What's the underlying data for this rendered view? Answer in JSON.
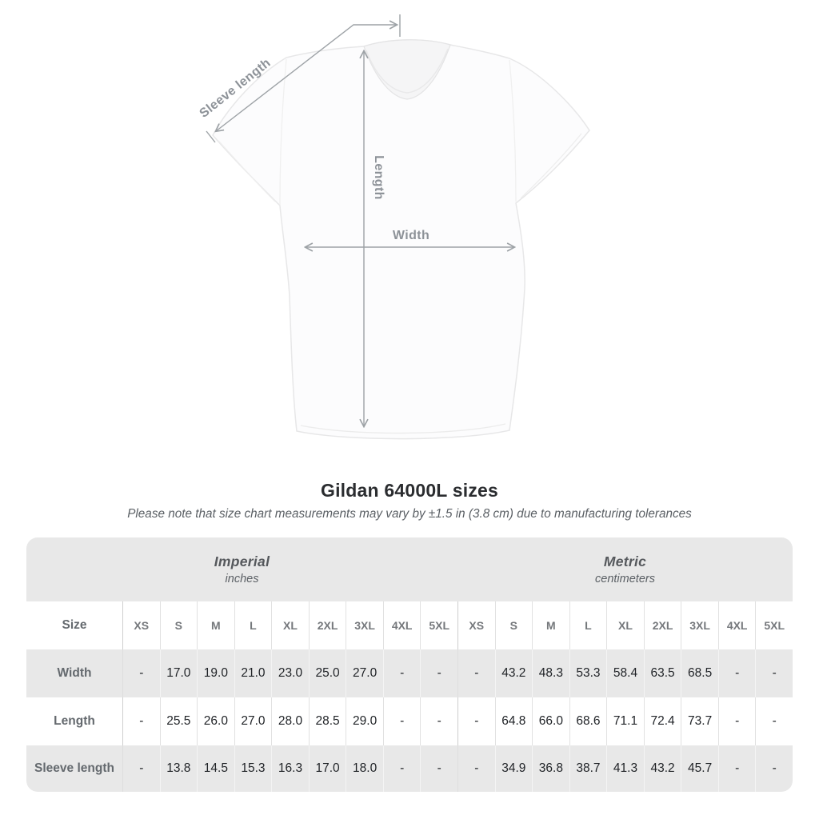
{
  "diagram": {
    "sleeve_length_label": "Sleeve length",
    "length_label": "Length",
    "width_label": "Width",
    "line_color": "#9da2a6",
    "label_color": "#8d9298"
  },
  "heading": {
    "title": "Gildan 64000L sizes",
    "note": "Please note that size chart measurements may vary by ±1.5 in (3.8 cm) due to manufacturing tolerances"
  },
  "chart_data": {
    "type": "table",
    "title": "Gildan 64000L sizes",
    "note": "Please note that size chart measurements may vary by ±1.5 in (3.8 cm) due to manufacturing tolerances",
    "section_headers": [
      {
        "name": "Imperial",
        "unit": "inches"
      },
      {
        "name": "Metric",
        "unit": "centimeters"
      }
    ],
    "corner_label": "Size",
    "size_columns": [
      "XS",
      "S",
      "M",
      "L",
      "XL",
      "2XL",
      "3XL",
      "4XL",
      "5XL"
    ],
    "rows": [
      {
        "label": "Width",
        "imperial": [
          "-",
          "17.0",
          "19.0",
          "21.0",
          "23.0",
          "25.0",
          "27.0",
          "-",
          "-"
        ],
        "metric": [
          "-",
          "43.2",
          "48.3",
          "53.3",
          "58.4",
          "63.5",
          "68.5",
          "-",
          "-"
        ]
      },
      {
        "label": "Length",
        "imperial": [
          "-",
          "25.5",
          "26.0",
          "27.0",
          "28.0",
          "28.5",
          "29.0",
          "-",
          "-"
        ],
        "metric": [
          "-",
          "64.8",
          "66.0",
          "68.6",
          "71.1",
          "72.4",
          "73.7",
          "-",
          "-"
        ]
      },
      {
        "label": "Sleeve length",
        "imperial": [
          "-",
          "13.8",
          "14.5",
          "15.3",
          "16.3",
          "17.0",
          "18.0",
          "-",
          "-"
        ],
        "metric": [
          "-",
          "34.9",
          "36.8",
          "38.7",
          "41.3",
          "43.2",
          "45.7",
          "-",
          "-"
        ]
      }
    ]
  },
  "colors": {
    "row_shade": "#e8e8e8",
    "value_text": "#1f2226",
    "column_header_text": "#75787c",
    "row_label_text": "#64696e",
    "title_text": "#2b2d30",
    "note_text": "#5b6065"
  }
}
